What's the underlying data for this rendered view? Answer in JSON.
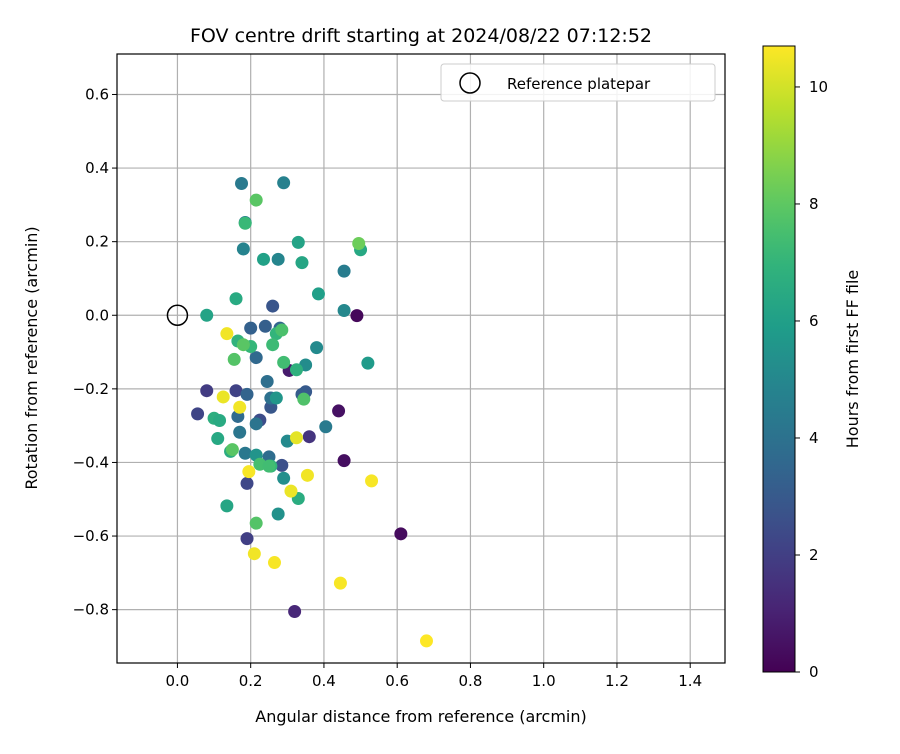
{
  "chart_data": {
    "type": "scatter",
    "title": "FOV centre drift starting at 2024/08/22 07:12:52",
    "xlabel": "Angular distance from reference (arcmin)",
    "ylabel": "Rotation from reference (arcmin)",
    "xlim": [
      -0.165,
      1.495
    ],
    "ylim": [
      -0.945,
      0.71
    ],
    "x_ticks": [
      0.0,
      0.2,
      0.4,
      0.6,
      0.8,
      1.0,
      1.2,
      1.4
    ],
    "x_tick_labels": [
      "0.0",
      "0.2",
      "0.4",
      "0.6",
      "0.8",
      "1.0",
      "1.2",
      "1.4"
    ],
    "y_ticks": [
      0.6,
      0.4,
      0.2,
      0.0,
      -0.2,
      -0.4,
      -0.6,
      -0.8
    ],
    "y_tick_labels": [
      "0.6",
      "0.4",
      "0.2",
      "0.0",
      "−0.2",
      "−0.4",
      "−0.6",
      "−0.8"
    ],
    "grid": true,
    "legend_position": "top-right",
    "legend": [
      {
        "label": "Reference platepar",
        "marker": "hollow-circle"
      }
    ],
    "reference_point": {
      "x": 0.0,
      "y": 0.0
    },
    "colorbar": {
      "label": "Hours from first FF file",
      "colormap": "viridis",
      "range": [
        0,
        10.7
      ],
      "ticks": [
        0,
        2,
        4,
        6,
        8,
        10
      ],
      "tick_labels": [
        "0",
        "2",
        "4",
        "6",
        "8",
        "10"
      ]
    },
    "points": [
      {
        "x": 0.49,
        "y": -0.001,
        "c": 0.2
      },
      {
        "x": 0.61,
        "y": -0.594,
        "c": 0.3
      },
      {
        "x": 0.44,
        "y": -0.26,
        "c": 0.5
      },
      {
        "x": 0.455,
        "y": -0.395,
        "c": 0.4
      },
      {
        "x": 0.305,
        "y": -0.15,
        "c": 0.8
      },
      {
        "x": 0.32,
        "y": -0.805,
        "c": 1.2
      },
      {
        "x": 0.36,
        "y": -0.33,
        "c": 1.6
      },
      {
        "x": 0.19,
        "y": -0.607,
        "c": 2.0
      },
      {
        "x": 0.08,
        "y": -0.205,
        "c": 1.9
      },
      {
        "x": 0.055,
        "y": -0.268,
        "c": 2.2
      },
      {
        "x": 0.16,
        "y": -0.205,
        "c": 2.1
      },
      {
        "x": 0.19,
        "y": -0.457,
        "c": 2.3
      },
      {
        "x": 0.225,
        "y": -0.285,
        "c": 2.5
      },
      {
        "x": 0.285,
        "y": -0.408,
        "c": 2.6
      },
      {
        "x": 0.26,
        "y": 0.025,
        "c": 2.8
      },
      {
        "x": 0.255,
        "y": -0.25,
        "c": 2.9
      },
      {
        "x": 0.35,
        "y": -0.208,
        "c": 3.0
      },
      {
        "x": 0.34,
        "y": -0.215,
        "c": 3.1
      },
      {
        "x": 0.2,
        "y": -0.035,
        "c": 3.3
      },
      {
        "x": 0.24,
        "y": -0.03,
        "c": 3.2
      },
      {
        "x": 0.28,
        "y": -0.035,
        "c": 3.5
      },
      {
        "x": 0.19,
        "y": -0.215,
        "c": 3.4
      },
      {
        "x": 0.215,
        "y": -0.115,
        "c": 3.6
      },
      {
        "x": 0.245,
        "y": -0.18,
        "c": 3.9
      },
      {
        "x": 0.255,
        "y": -0.225,
        "c": 4.0
      },
      {
        "x": 0.25,
        "y": -0.385,
        "c": 3.8
      },
      {
        "x": 0.215,
        "y": -0.295,
        "c": 4.1
      },
      {
        "x": 0.165,
        "y": -0.275,
        "c": 3.7
      },
      {
        "x": 0.17,
        "y": -0.318,
        "c": 4.2
      },
      {
        "x": 0.185,
        "y": -0.375,
        "c": 4.3
      },
      {
        "x": 0.405,
        "y": -0.303,
        "c": 4.4
      },
      {
        "x": 0.455,
        "y": 0.12,
        "c": 4.5
      },
      {
        "x": 0.175,
        "y": 0.358,
        "c": 4.4
      },
      {
        "x": 0.29,
        "y": 0.36,
        "c": 4.7
      },
      {
        "x": 0.185,
        "y": 0.252,
        "c": 4.5
      },
      {
        "x": 0.18,
        "y": 0.18,
        "c": 4.8
      },
      {
        "x": 0.275,
        "y": 0.152,
        "c": 4.9
      },
      {
        "x": 0.455,
        "y": 0.013,
        "c": 5.0
      },
      {
        "x": 0.38,
        "y": -0.088,
        "c": 5.1
      },
      {
        "x": 0.35,
        "y": -0.135,
        "c": 5.2
      },
      {
        "x": 0.3,
        "y": -0.342,
        "c": 5.1
      },
      {
        "x": 0.29,
        "y": -0.443,
        "c": 5.3
      },
      {
        "x": 0.275,
        "y": -0.54,
        "c": 5.4
      },
      {
        "x": 0.215,
        "y": -0.38,
        "c": 5.5
      },
      {
        "x": 0.27,
        "y": -0.225,
        "c": 5.6
      },
      {
        "x": 0.52,
        "y": -0.13,
        "c": 5.8
      },
      {
        "x": 0.385,
        "y": 0.058,
        "c": 6.0
      },
      {
        "x": 0.33,
        "y": 0.198,
        "c": 6.2
      },
      {
        "x": 0.34,
        "y": 0.143,
        "c": 6.3
      },
      {
        "x": 0.235,
        "y": 0.152,
        "c": 6.1
      },
      {
        "x": 0.5,
        "y": 0.178,
        "c": 6.4
      },
      {
        "x": 0.08,
        "y": 0.0,
        "c": 6.2
      },
      {
        "x": 0.16,
        "y": 0.045,
        "c": 6.5
      },
      {
        "x": 0.135,
        "y": -0.518,
        "c": 6.3
      },
      {
        "x": 0.33,
        "y": -0.498,
        "c": 6.6
      },
      {
        "x": 0.11,
        "y": -0.335,
        "c": 6.4
      },
      {
        "x": 0.1,
        "y": -0.28,
        "c": 6.7
      },
      {
        "x": 0.115,
        "y": -0.286,
        "c": 6.5
      },
      {
        "x": 0.145,
        "y": -0.37,
        "c": 6.6
      },
      {
        "x": 0.325,
        "y": -0.148,
        "c": 6.8
      },
      {
        "x": 0.27,
        "y": -0.05,
        "c": 7.0
      },
      {
        "x": 0.165,
        "y": -0.07,
        "c": 6.9
      },
      {
        "x": 0.255,
        "y": -0.41,
        "c": 7.0
      },
      {
        "x": 0.185,
        "y": 0.25,
        "c": 7.2
      },
      {
        "x": 0.2,
        "y": -0.085,
        "c": 7.1
      },
      {
        "x": 0.26,
        "y": -0.08,
        "c": 7.3
      },
      {
        "x": 0.29,
        "y": -0.128,
        "c": 7.4
      },
      {
        "x": 0.225,
        "y": -0.405,
        "c": 7.5
      },
      {
        "x": 0.25,
        "y": -0.41,
        "c": 7.4
      },
      {
        "x": 0.285,
        "y": -0.04,
        "c": 7.6
      },
      {
        "x": 0.345,
        "y": -0.228,
        "c": 7.7
      },
      {
        "x": 0.155,
        "y": -0.12,
        "c": 7.8
      },
      {
        "x": 0.18,
        "y": -0.08,
        "c": 7.9
      },
      {
        "x": 0.215,
        "y": 0.313,
        "c": 7.9
      },
      {
        "x": 0.215,
        "y": -0.565,
        "c": 7.8
      },
      {
        "x": 0.15,
        "y": -0.365,
        "c": 7.9
      },
      {
        "x": 0.495,
        "y": 0.195,
        "c": 8.3
      },
      {
        "x": 0.135,
        "y": -0.05,
        "c": 10.5
      },
      {
        "x": 0.125,
        "y": -0.222,
        "c": 10.4
      },
      {
        "x": 0.17,
        "y": -0.25,
        "c": 10.5
      },
      {
        "x": 0.195,
        "y": -0.425,
        "c": 10.6
      },
      {
        "x": 0.21,
        "y": -0.648,
        "c": 10.5
      },
      {
        "x": 0.265,
        "y": -0.672,
        "c": 10.6
      },
      {
        "x": 0.31,
        "y": -0.478,
        "c": 10.4
      },
      {
        "x": 0.325,
        "y": -0.333,
        "c": 10.3
      },
      {
        "x": 0.355,
        "y": -0.435,
        "c": 10.5
      },
      {
        "x": 0.53,
        "y": -0.45,
        "c": 10.6
      },
      {
        "x": 0.445,
        "y": -0.728,
        "c": 10.6
      },
      {
        "x": 0.68,
        "y": -0.885,
        "c": 10.7
      }
    ]
  }
}
